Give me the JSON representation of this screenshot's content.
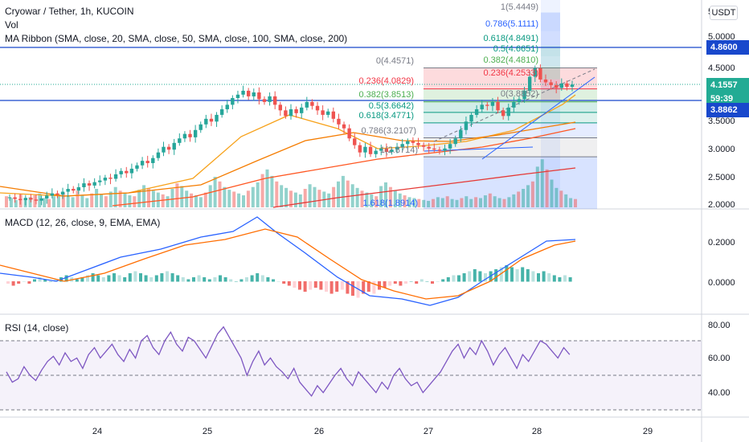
{
  "symbol_legend": {
    "title": "Cryowar / Tether, 1h, KUCOIN",
    "vol": "Vol",
    "ribbon": "MA Ribbon (SMA, close, 20, SMA, close, 50, SMA, close, 100, SMA, close, 200)"
  },
  "currency_button": "USDT",
  "price_axis": {
    "ticks": [
      "5.0000",
      "4.5000",
      "4.0000",
      "3.5000",
      "3.0000",
      "2.5000",
      "2.0000"
    ],
    "partial_top": "5",
    "badges": [
      {
        "label": "4.8600",
        "color": "#1848cc"
      },
      {
        "label": "4.1557",
        "color": "#22ab94"
      },
      {
        "label": "59:39",
        "color": "#22ab94"
      },
      {
        "label": "3.8862",
        "color": "#1848cc"
      }
    ]
  },
  "time_axis": {
    "labels": [
      "24",
      "25",
      "26",
      "27",
      "28",
      "29"
    ]
  },
  "fib_left": {
    "labels": [
      "0(4.4571)",
      "0.236(4.0829)",
      "0.382(3.8513)",
      "0.5(3.6642)",
      "0.618(3.4771)",
      "0.786(3.2107)",
      "1(2.8714)",
      "1.618(1.8914)"
    ],
    "colors": [
      "#787b86",
      "#f23645",
      "#4caf50",
      "#089981",
      "#089981",
      "#787b86",
      "#787b86",
      "#2962ff"
    ]
  },
  "fib_right": {
    "labels": [
      "1(5.4449)",
      "0.786(5.1111)",
      "0.618(4.8491)",
      "0.5(4.6651)",
      "0.382(4.4810)",
      "0.236(4.2533)",
      "0(3.8852)"
    ],
    "colors": [
      "#787b86",
      "#2962ff",
      "#089981",
      "#089981",
      "#4caf50",
      "#f23645",
      "#787b86"
    ]
  },
  "macd": {
    "legend": "MACD (12, 26, close, 9, EMA, EMA)",
    "ticks": [
      "0.2000",
      "0.0000"
    ]
  },
  "rsi": {
    "legend": "RSI (14, close)",
    "ticks": [
      "80.00",
      "60.00",
      "40.00"
    ]
  },
  "colors": {
    "up": "#26a69a",
    "down": "#ef5350",
    "ma20": "#f7a21b",
    "ma50": "#f57c00",
    "ma100": "#ff5722",
    "ma200": "#e53935",
    "macd": "#2962ff",
    "signal": "#ff6d00",
    "rsi": "#7e57c2"
  }
}
